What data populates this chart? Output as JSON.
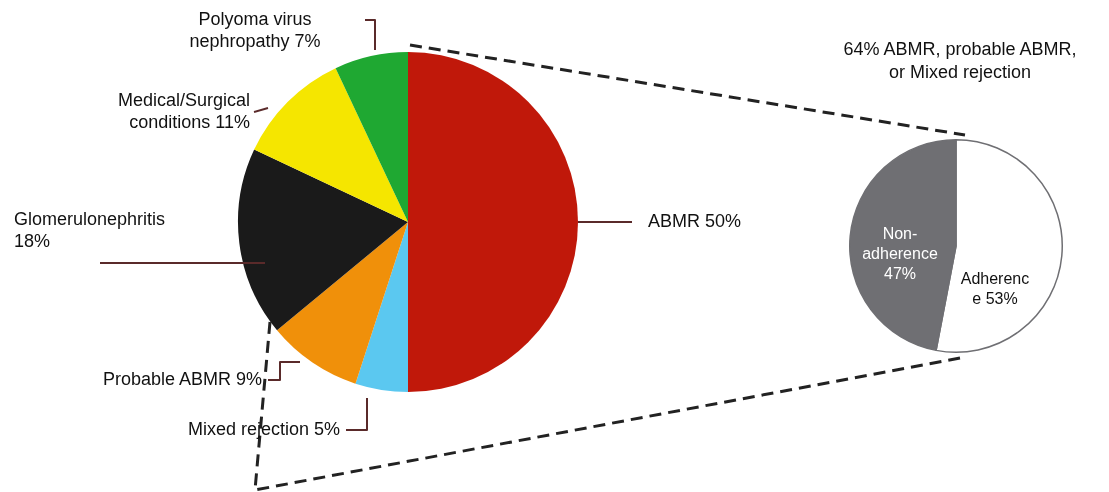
{
  "chart_data": [
    {
      "type": "pie",
      "categories": [
        "ABMR",
        "Mixed rejection",
        "Probable ABMR",
        "Glomerulonephritis",
        "Medical/Surgical conditions",
        "Polyoma virus nephropathy"
      ],
      "values": [
        50,
        5,
        9,
        18,
        11,
        7
      ],
      "colors": [
        "#c0180a",
        "#5bc8f0",
        "#f0900a",
        "#1a1a1a",
        "#f5e600",
        "#1fa832"
      ],
      "value_labels": [
        "50%",
        "5%",
        "9%",
        "18%",
        "11%",
        "7%"
      ]
    },
    {
      "type": "pie",
      "title": "64% ABMR, probable ABMR, or Mixed rejection",
      "categories": [
        "Adherence",
        "Non-adherence"
      ],
      "values": [
        53,
        47
      ],
      "colors": [
        "#ffffff",
        "#6f6f73"
      ],
      "value_labels": [
        "53%",
        "47%"
      ]
    }
  ]
}
